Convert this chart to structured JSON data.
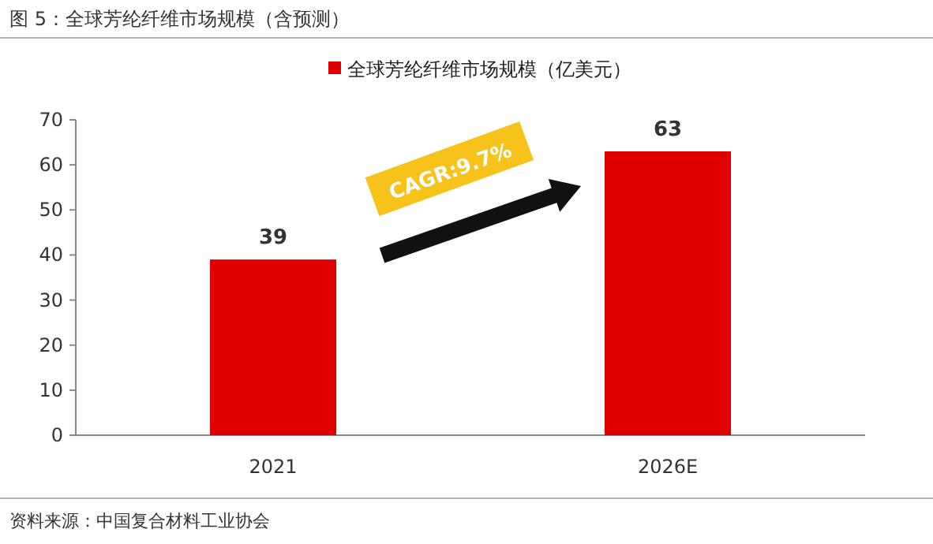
{
  "chart_data": {
    "type": "bar",
    "title": "图 5：全球芳纶纤维市场规模（含预测）",
    "categories": [
      "2021",
      "2026E"
    ],
    "series": [
      {
        "name": "全球芳纶纤维市场规模（亿美元）",
        "color": "#e00000",
        "values": [
          39,
          63
        ]
      }
    ],
    "ylim": [
      0,
      70
    ],
    "yticks": [
      0,
      10,
      20,
      30,
      40,
      50,
      60,
      70
    ],
    "data_labels": true,
    "legend": "top",
    "grid": false,
    "annotations": [
      "CAGR:9.7%",
      "资料来源：中国复合材料工业协会"
    ]
  }
}
